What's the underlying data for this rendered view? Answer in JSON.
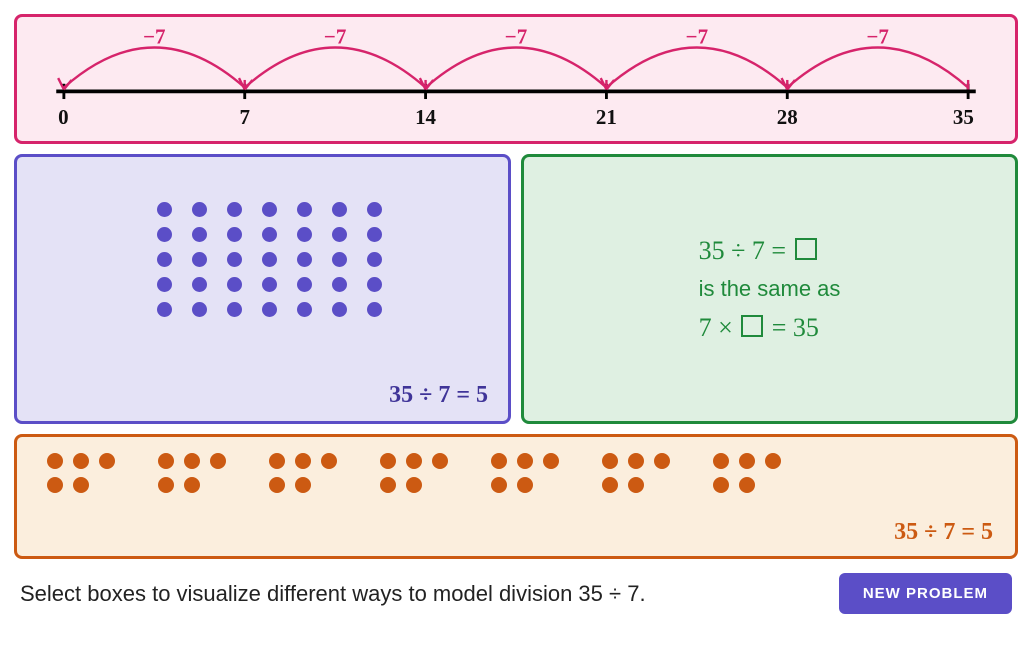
{
  "problem": {
    "dividend": 35,
    "divisor": 7,
    "quotient": 5
  },
  "numberline": {
    "border_color": "#d6246b",
    "background_color": "#fdeaf1",
    "line_color": "#000000",
    "hop_color": "#d6246b",
    "hop_label": "−7",
    "hop_label_color": "#d6246b",
    "ticks": [
      0,
      7,
      14,
      21,
      28,
      35
    ],
    "tick_label_color": "#111111",
    "hop_count": 5,
    "xlim": [
      0,
      35
    ]
  },
  "array_model": {
    "border_color": "#5b4ec7",
    "background_color": "#e4e2f6",
    "dot_color": "#5b4ec7",
    "rows": 5,
    "cols": 7,
    "equation": "35 ÷ 7 = 5",
    "equation_color": "#3f3498"
  },
  "relation_model": {
    "border_color": "#1f8a3b",
    "background_color": "#dff0e2",
    "text_color": "#1f8a3b",
    "line1_pre": "35 ÷ 7 = ",
    "line1_has_square": true,
    "line2": "is the same as",
    "line3_pre": "7 × ",
    "line3_has_square": true,
    "line3_post": " = 35"
  },
  "groups_model": {
    "border_color": "#cc5a12",
    "background_color": "#fbeedd",
    "dot_color": "#cc5a12",
    "group_count": 7,
    "per_group": 5,
    "equation": "35 ÷ 7 = 5",
    "equation_color": "#cc5a12"
  },
  "footer": {
    "instruction": "Select boxes to visualize different ways to model division 35 ÷ 7.",
    "button_label": "NEW PROBLEM",
    "button_bg": "#5b4ec7",
    "button_fg": "#ffffff"
  }
}
